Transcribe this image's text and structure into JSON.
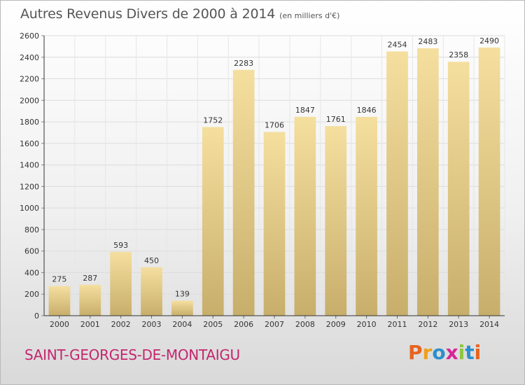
{
  "header": {
    "title": "Autres Revenus Divers de 2000 à 2014",
    "subtitle": "(en milliers d'€)"
  },
  "footer": {
    "commune": "SAINT-GEORGES-DE-MONTAIGU",
    "logo_text": "Proxiti"
  },
  "colors": {
    "bar_top": "#f5df9f",
    "bar_bottom": "#c8ae6b",
    "grid": "#dcdcdc",
    "axis": "#333333",
    "commune": "#c4266d"
  },
  "chart_data": {
    "type": "bar",
    "title": "Autres Revenus Divers de 2000 à 2014",
    "subtitle": "(en milliers d'€)",
    "categories": [
      "2000",
      "2001",
      "2002",
      "2003",
      "2004",
      "2005",
      "2006",
      "2007",
      "2008",
      "2009",
      "2010",
      "2011",
      "2012",
      "2013",
      "2014"
    ],
    "values": [
      275,
      287,
      593,
      450,
      139,
      1752,
      2283,
      1706,
      1847,
      1761,
      1846,
      2454,
      2483,
      2358,
      2490
    ],
    "ylim": [
      0,
      2600
    ],
    "yticks": [
      0,
      200,
      400,
      600,
      800,
      1000,
      1200,
      1400,
      1600,
      1800,
      2000,
      2200,
      2400,
      2600
    ],
    "grid": true,
    "data_labels": true,
    "xlabel": "",
    "ylabel": ""
  }
}
